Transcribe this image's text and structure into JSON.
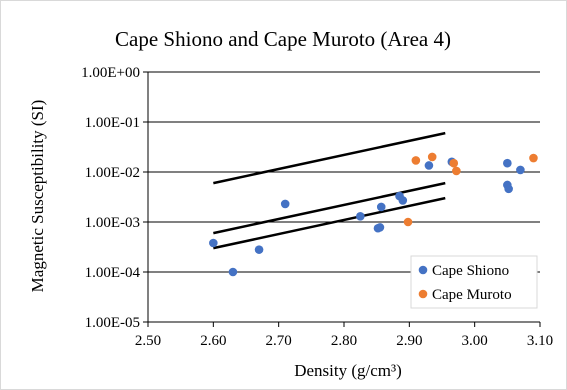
{
  "chart_data": {
    "type": "scatter",
    "title": "Cape Shiono and Cape Muroto (Area 4)",
    "xlabel": "Density (g/cm³)",
    "ylabel": "Magnetic Susceptibility (SI)",
    "xlim": [
      2.5,
      3.1
    ],
    "ylim": [
      1e-05,
      1
    ],
    "yscale": "log",
    "x_ticks": [
      "2.50",
      "2.60",
      "2.70",
      "2.80",
      "2.90",
      "3.00",
      "3.10"
    ],
    "y_ticks": [
      "1.00E-05",
      "1.00E-04",
      "1.00E-03",
      "1.00E-02",
      "1.00E-01",
      "1.00E+00"
    ],
    "grid": "horizontal",
    "legend_position": "bottom-right",
    "series": [
      {
        "name": "Cape Shiono",
        "color": "#4472c4",
        "points": [
          {
            "x": 2.6,
            "y": 0.00038
          },
          {
            "x": 2.63,
            "y": 0.0001
          },
          {
            "x": 2.67,
            "y": 0.00028
          },
          {
            "x": 2.71,
            "y": 0.0023
          },
          {
            "x": 2.825,
            "y": 0.0013
          },
          {
            "x": 2.852,
            "y": 0.00075
          },
          {
            "x": 2.855,
            "y": 0.00078
          },
          {
            "x": 2.857,
            "y": 0.002
          },
          {
            "x": 2.885,
            "y": 0.0033
          },
          {
            "x": 2.89,
            "y": 0.0027
          },
          {
            "x": 2.93,
            "y": 0.0135
          },
          {
            "x": 2.965,
            "y": 0.016
          },
          {
            "x": 3.05,
            "y": 0.015
          },
          {
            "x": 3.05,
            "y": 0.0055
          },
          {
            "x": 3.052,
            "y": 0.0046
          },
          {
            "x": 3.07,
            "y": 0.011
          }
        ]
      },
      {
        "name": "Cape Muroto",
        "color": "#ed7d31",
        "points": [
          {
            "x": 2.898,
            "y": 0.001
          },
          {
            "x": 2.91,
            "y": 0.017
          },
          {
            "x": 2.935,
            "y": 0.02
          },
          {
            "x": 2.968,
            "y": 0.015
          },
          {
            "x": 2.972,
            "y": 0.0105
          },
          {
            "x": 3.09,
            "y": 0.019
          }
        ]
      }
    ],
    "reference_lines": [
      {
        "x": [
          2.6,
          2.955
        ],
        "y": [
          0.006,
          0.06
        ]
      },
      {
        "x": [
          2.6,
          2.955
        ],
        "y": [
          0.0006,
          0.006
        ]
      },
      {
        "x": [
          2.6,
          2.955
        ],
        "y": [
          0.0003,
          0.003
        ]
      }
    ]
  }
}
